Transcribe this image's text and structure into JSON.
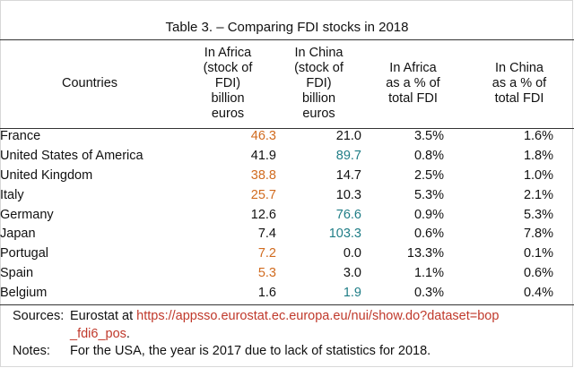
{
  "table": {
    "title": "Table 3. – Comparing FDI stocks in 2018",
    "headers": [
      "Countries",
      "In Africa (stock of FDI) billion euros",
      "In China (stock of FDI) billion euros",
      "In Africa as a % of total FDI",
      "In China as a % of total FDI"
    ],
    "header_lines": [
      [
        "Countries"
      ],
      [
        "In Africa",
        "(stock of",
        "FDI)",
        "billion",
        "euros"
      ],
      [
        "In China",
        "(stock of",
        "FDI)",
        "billion",
        "euros"
      ],
      [
        "In Africa",
        "as a % of",
        "total FDI"
      ],
      [
        "In China",
        "as a % of",
        "total FDI"
      ]
    ],
    "rows": [
      {
        "country": "France",
        "africa": "46.3",
        "china": "21.0",
        "africa_pct": "3.5%",
        "china_pct": "1.6%",
        "highlight": "africa"
      },
      {
        "country": "United States of America",
        "africa": "41.9",
        "china": "89.7",
        "africa_pct": "0.8%",
        "china_pct": "1.8%",
        "highlight": "china"
      },
      {
        "country": "United Kingdom",
        "africa": "38.8",
        "china": "14.7",
        "africa_pct": "2.5%",
        "china_pct": "1.0%",
        "highlight": "africa"
      },
      {
        "country": "Italy",
        "africa": "25.7",
        "china": "10.3",
        "africa_pct": "5.3%",
        "china_pct": "2.1%",
        "highlight": "africa"
      },
      {
        "country": "Germany",
        "africa": "12.6",
        "china": "76.6",
        "africa_pct": "0.9%",
        "china_pct": "5.3%",
        "highlight": "china"
      },
      {
        "country": "Japan",
        "africa": "7.4",
        "china": "103.3",
        "africa_pct": "0.6%",
        "china_pct": "7.8%",
        "highlight": "china"
      },
      {
        "country": "Portugal",
        "africa": "7.2",
        "china": "0.0",
        "africa_pct": "13.3%",
        "china_pct": "0.1%",
        "highlight": "africa"
      },
      {
        "country": "Spain",
        "africa": "5.3",
        "china": "3.0",
        "africa_pct": "1.1%",
        "china_pct": "0.6%",
        "highlight": "africa"
      },
      {
        "country": "Belgium",
        "africa": "1.6",
        "china": "1.9",
        "africa_pct": "0.3%",
        "china_pct": "0.4%",
        "highlight": "china"
      }
    ]
  },
  "footer": {
    "sources_label": "Sources:",
    "sources_text": "Eurostat at ",
    "sources_url": "https://appsso.eurostat.ec.europa.eu/nui/show.do?dataset=bop_fdi6_pos",
    "sources_url_line1": "https://appsso.eurostat.ec.europa.eu/nui/show.do?dataset=bop",
    "sources_url_line2": "_fdi6_pos",
    "sources_end": ".",
    "notes_label": "Notes:",
    "notes_text": "For the USA, the year is 2017 due to lack of statistics for 2018."
  },
  "colors": {
    "africa_highlight": "#d16b1f",
    "china_highlight": "#1f7d86",
    "link": "#c0392b"
  }
}
